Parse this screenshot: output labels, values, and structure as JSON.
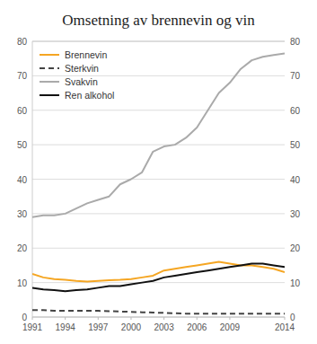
{
  "chart_data": {
    "type": "line",
    "title": "Omsetning av brennevin og vin",
    "x": [
      1991,
      1992,
      1993,
      1994,
      1995,
      1996,
      1997,
      1998,
      1999,
      2000,
      2001,
      2002,
      2003,
      2004,
      2005,
      2006,
      2007,
      2008,
      2009,
      2010,
      2011,
      2012,
      2013,
      2014
    ],
    "series": [
      {
        "name": "Brennevin",
        "color": "#f5a623",
        "line_style": "solid",
        "values": [
          12.5,
          11.5,
          11.0,
          10.8,
          10.5,
          10.3,
          10.5,
          10.7,
          10.8,
          11.0,
          11.5,
          12.0,
          13.5,
          14.0,
          14.5,
          15.0,
          15.5,
          16.0,
          15.5,
          15.0,
          15.0,
          14.5,
          14.0,
          13.0
        ]
      },
      {
        "name": "Sterkvin",
        "color": "#444444",
        "line_style": "dashed",
        "values": [
          2.0,
          2.0,
          1.8,
          1.8,
          1.8,
          1.8,
          1.8,
          1.7,
          1.6,
          1.5,
          1.4,
          1.3,
          1.2,
          1.1,
          1.0,
          1.0,
          1.0,
          1.0,
          1.0,
          1.0,
          1.0,
          1.0,
          1.0,
          1.0
        ]
      },
      {
        "name": "Svakvin",
        "color": "#aaaaaa",
        "line_style": "solid",
        "values": [
          29.0,
          29.5,
          29.5,
          30.0,
          31.5,
          33.0,
          34.0,
          35.0,
          38.5,
          40.0,
          42.0,
          48.0,
          49.5,
          50.0,
          52.0,
          55.0,
          60.0,
          65.0,
          68.0,
          72.0,
          74.5,
          75.5,
          76.0,
          76.5
        ]
      },
      {
        "name": "Ren alkohol",
        "color": "#111111",
        "line_style": "solid",
        "values": [
          8.5,
          8.0,
          7.8,
          7.5,
          7.8,
          8.0,
          8.5,
          9.0,
          9.0,
          9.5,
          10.0,
          10.5,
          11.5,
          12.0,
          12.5,
          13.0,
          13.5,
          14.0,
          14.5,
          15.0,
          15.5,
          15.5,
          15.0,
          14.5
        ]
      }
    ],
    "xlim": [
      1991,
      2014
    ],
    "xticks": [
      1991,
      1994,
      1997,
      2000,
      2003,
      2006,
      2009,
      2014
    ],
    "ylim": [
      0,
      80
    ],
    "yticks": [
      0,
      10,
      20,
      30,
      40,
      50,
      60,
      70,
      80
    ],
    "y2lim": [
      0,
      80
    ],
    "y2ticks": [
      0,
      10,
      20,
      30,
      40,
      50,
      60,
      70,
      80
    ],
    "grid": true,
    "legend": "upper left"
  }
}
